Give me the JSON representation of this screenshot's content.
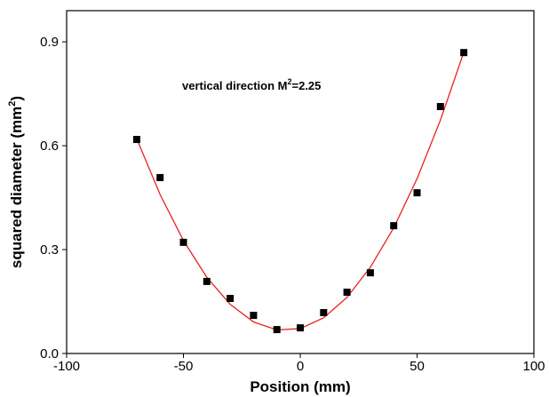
{
  "chart_data": {
    "type": "scatter",
    "xlabel": "Position (mm)",
    "ylabel": {
      "main": "squared diameter (mm",
      "sup": "2",
      "tail": ")"
    },
    "annotation": {
      "main": "vertical direction M",
      "sup": "2",
      "tail": "=2.25"
    },
    "x": [
      -70,
      -60,
      -50,
      -40,
      -30,
      -20,
      -10,
      0,
      10,
      20,
      30,
      40,
      50,
      60,
      70
    ],
    "values": [
      0.618,
      0.508,
      0.321,
      0.208,
      0.159,
      0.11,
      0.069,
      0.074,
      0.118,
      0.177,
      0.233,
      0.369,
      0.464,
      0.713,
      0.869
    ],
    "color": "#000000",
    "fit": {
      "color": "#e8211f",
      "x": [
        -70,
        -60,
        -50,
        -40,
        -30,
        -20,
        -10,
        0,
        10,
        20,
        30,
        40,
        50,
        60,
        70
      ],
      "values": [
        0.62,
        0.459,
        0.326,
        0.22,
        0.142,
        0.091,
        0.068,
        0.072,
        0.103,
        0.162,
        0.249,
        0.363,
        0.505,
        0.674,
        0.87
      ]
    },
    "xlim": [
      -100,
      100
    ],
    "xticks": [
      -100,
      -50,
      0,
      50,
      100
    ],
    "ylim": [
      0,
      0.99
    ],
    "yticks": [
      {
        "value": 0,
        "label": "0.0"
      },
      0.3,
      0.6,
      0.9
    ]
  }
}
